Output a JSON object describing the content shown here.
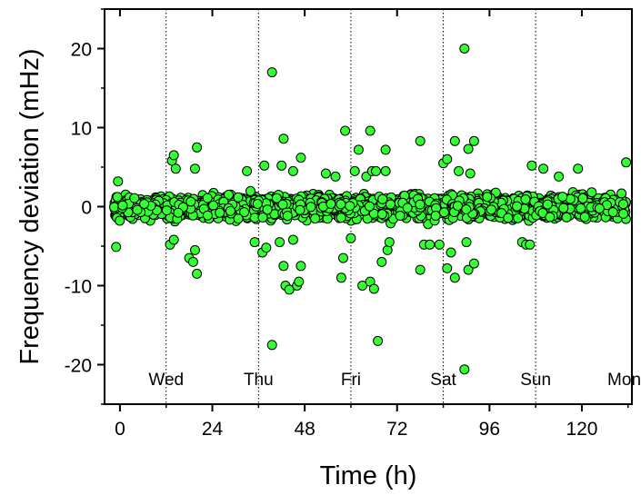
{
  "chart_data": {
    "type": "scatter",
    "xlabel": "Time (h)",
    "ylabel": "Frequency deviation (mHz)",
    "xlim": [
      -4,
      133
    ],
    "ylim": [
      -25,
      25
    ],
    "xticks": [
      0,
      24,
      48,
      72,
      96,
      120
    ],
    "yticks": [
      -20,
      -10,
      0,
      10,
      20
    ],
    "grid": true,
    "grid_style": "dotted vertical lines every 12 h",
    "marker_color": "#33ff33",
    "marker_edge_color": "#000000",
    "day_labels": [
      {
        "label": "Wed",
        "x": 12
      },
      {
        "label": "Thu",
        "x": 36
      },
      {
        "label": "Fri",
        "x": 60
      },
      {
        "label": "Sat",
        "x": 84
      },
      {
        "label": "Sun",
        "x": 108
      },
      {
        "label": "Mon",
        "x": 131
      }
    ],
    "dense_band": {
      "x_start": -1.5,
      "x_end": 131.5,
      "n_points": 2200,
      "typical_range": [
        -3,
        3
      ]
    },
    "outliers": [
      {
        "x": -1,
        "y": -5.1
      },
      {
        "x": -0.5,
        "y": 3.2
      },
      {
        "x": 13.5,
        "y": 5.8
      },
      {
        "x": 14,
        "y": 6.5
      },
      {
        "x": 14.5,
        "y": 4.8
      },
      {
        "x": 13,
        "y": -4.8
      },
      {
        "x": 14,
        "y": -4.2
      },
      {
        "x": 18,
        "y": -6.5
      },
      {
        "x": 19.5,
        "y": 4.8
      },
      {
        "x": 20,
        "y": 7.5
      },
      {
        "x": 19.5,
        "y": -5.5
      },
      {
        "x": 19,
        "y": -7
      },
      {
        "x": 20,
        "y": -8.5
      },
      {
        "x": 33,
        "y": 4.5
      },
      {
        "x": 35,
        "y": -4.5
      },
      {
        "x": 37.5,
        "y": 5.2
      },
      {
        "x": 37,
        "y": -5.8
      },
      {
        "x": 38,
        "y": -5.2
      },
      {
        "x": 39.5,
        "y": 17
      },
      {
        "x": 39.5,
        "y": -17.5
      },
      {
        "x": 41.5,
        "y": -4.5
      },
      {
        "x": 42,
        "y": 5.2
      },
      {
        "x": 42.5,
        "y": 8.6
      },
      {
        "x": 42.5,
        "y": -7.5
      },
      {
        "x": 43,
        "y": -10
      },
      {
        "x": 44,
        "y": -10.5
      },
      {
        "x": 45,
        "y": -4.2
      },
      {
        "x": 45,
        "y": 4.5
      },
      {
        "x": 46,
        "y": -10
      },
      {
        "x": 46.5,
        "y": -9.5
      },
      {
        "x": 47,
        "y": 6.2
      },
      {
        "x": 47,
        "y": -7.5
      },
      {
        "x": 53.5,
        "y": 4.2
      },
      {
        "x": 56,
        "y": 3.8
      },
      {
        "x": 57.5,
        "y": -9
      },
      {
        "x": 58,
        "y": -6.5
      },
      {
        "x": 58.5,
        "y": 9.6
      },
      {
        "x": 60,
        "y": -4
      },
      {
        "x": 61,
        "y": 4.5
      },
      {
        "x": 62,
        "y": 7.2
      },
      {
        "x": 63,
        "y": -10
      },
      {
        "x": 64,
        "y": 3.8
      },
      {
        "x": 65,
        "y": 9.6
      },
      {
        "x": 65,
        "y": -9.5
      },
      {
        "x": 65.5,
        "y": 4.5
      },
      {
        "x": 66,
        "y": -10.4
      },
      {
        "x": 66.5,
        "y": 4.5
      },
      {
        "x": 67,
        "y": -17
      },
      {
        "x": 68,
        "y": -7
      },
      {
        "x": 69,
        "y": 7.2
      },
      {
        "x": 69.5,
        "y": -5.5
      },
      {
        "x": 69,
        "y": 4.5
      },
      {
        "x": 70,
        "y": -4.5
      },
      {
        "x": 78,
        "y": 8.3
      },
      {
        "x": 78,
        "y": -8
      },
      {
        "x": 79,
        "y": -4.8
      },
      {
        "x": 80.5,
        "y": -4.8
      },
      {
        "x": 83,
        "y": -4.8
      },
      {
        "x": 84,
        "y": 5.5
      },
      {
        "x": 85,
        "y": 6
      },
      {
        "x": 85,
        "y": -7.8
      },
      {
        "x": 86,
        "y": -5.8
      },
      {
        "x": 87,
        "y": -9
      },
      {
        "x": 87,
        "y": 8.3
      },
      {
        "x": 88,
        "y": 4.5
      },
      {
        "x": 89.5,
        "y": 20
      },
      {
        "x": 89.5,
        "y": -20.6
      },
      {
        "x": 90,
        "y": -4.5
      },
      {
        "x": 90.5,
        "y": -8
      },
      {
        "x": 90.5,
        "y": 7.3
      },
      {
        "x": 91,
        "y": 4.2
      },
      {
        "x": 92,
        "y": 8.3
      },
      {
        "x": 92,
        "y": -7.2
      },
      {
        "x": 104.5,
        "y": -4.5
      },
      {
        "x": 105.5,
        "y": -4.8
      },
      {
        "x": 106.5,
        "y": -4.8
      },
      {
        "x": 107,
        "y": 5.2
      },
      {
        "x": 110,
        "y": 4.8
      },
      {
        "x": 114,
        "y": 3.8
      },
      {
        "x": 119,
        "y": 4.8
      },
      {
        "x": 131.5,
        "y": 5.6
      }
    ]
  }
}
